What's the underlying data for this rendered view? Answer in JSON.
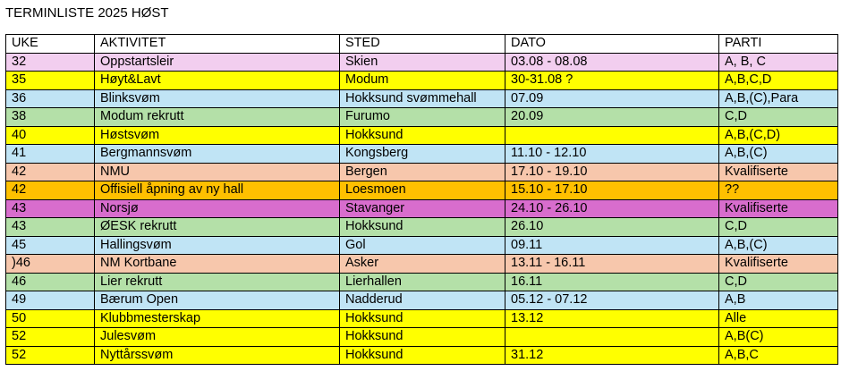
{
  "title": "TERMINLISTE 2025 HØST",
  "columns": [
    "UKE",
    "AKTIVITET",
    "STED",
    "DATO",
    "PARTI"
  ],
  "rows": [
    {
      "uke": "32",
      "aktivitet": "Oppstartsleir",
      "sted": "Skien",
      "dato": "03.08 - 08.08",
      "parti": "A, B, C",
      "color": "#f2ceef"
    },
    {
      "uke": "35",
      "aktivitet": "Høyt&Lavt",
      "sted": "Modum",
      "dato": "30-31.08  ?",
      "parti": "A,B,C,D",
      "color": "#ffff00"
    },
    {
      "uke": "36",
      "aktivitet": "Blinksvøm",
      "sted": "Hokksund svømmehall",
      "dato": "07.09",
      "parti": "A,B,(C),Para",
      "color": "#c0e4f5"
    },
    {
      "uke": "38",
      "aktivitet": "Modum rekrutt",
      "sted": "Furumo",
      "dato": "20.09",
      "parti": "C,D",
      "color": "#b4e0a8"
    },
    {
      "uke": "40",
      "aktivitet": "Høstsvøm",
      "sted": "Hokksund",
      "dato": "",
      "parti": "A,B,(C,D)",
      "color": "#ffff00"
    },
    {
      "uke": "41",
      "aktivitet": "Bergmannsvøm",
      "sted": "Kongsberg",
      "dato": "11.10 - 12.10",
      "parti": "A,B,(C)",
      "color": "#c0e4f5"
    },
    {
      "uke": "42",
      "aktivitet": "NMU",
      "sted": "Bergen",
      "dato": "17.10 - 19.10",
      "parti": "Kvalifiserte",
      "color": "#f7c7ac"
    },
    {
      "uke": "42",
      "aktivitet": "Offisiell åpning av ny hall",
      "sted": "Loesmoen",
      "dato": "15.10 - 17.10",
      "parti": "??",
      "color": "#ffc000"
    },
    {
      "uke": "43",
      "aktivitet": "Norsjø",
      "sted": "Stavanger",
      "dato": "24.10 - 26.10",
      "parti": "Kvalifiserte",
      "color": "#d86dcd"
    },
    {
      "uke": "43",
      "aktivitet": "ØESK rekrutt",
      "sted": "Hokksund",
      "dato": "26.10",
      "parti": "C,D",
      "color": "#b4e0a8"
    },
    {
      "uke": "45",
      "aktivitet": "Hallingsvøm",
      "sted": "Gol",
      "dato": "09.11",
      "parti": "A,B,(C)",
      "color": "#c0e4f5"
    },
    {
      "uke": ")46",
      "aktivitet": "NM Kortbane",
      "sted": "Asker",
      "dato": "13.11 - 16.11",
      "parti": "Kvalifiserte",
      "color": "#f7c7ac"
    },
    {
      "uke": "46",
      "aktivitet": "Lier rekrutt",
      "sted": "Lierhallen",
      "dato": "16.11",
      "parti": "C,D",
      "color": "#b4e0a8"
    },
    {
      "uke": "49",
      "aktivitet": "Bærum Open",
      "sted": "Nadderud",
      "dato": "05.12 - 07.12",
      "parti": "A,B",
      "color": "#c0e4f5"
    },
    {
      "uke": "50",
      "aktivitet": "Klubbmesterskap",
      "sted": "Hokksund",
      "dato": "13.12",
      "parti": "Alle",
      "color": "#ffff00"
    },
    {
      "uke": "52",
      "aktivitet": "Julesvøm",
      "sted": "Hokksund",
      "dato": "",
      "parti": "A,B(C)",
      "color": "#ffff00"
    },
    {
      "uke": "52",
      "aktivitet": "Nyttårssvøm",
      "sted": "Hokksund",
      "dato": "31.12",
      "parti": "A,B,C",
      "color": "#ffff00"
    }
  ]
}
